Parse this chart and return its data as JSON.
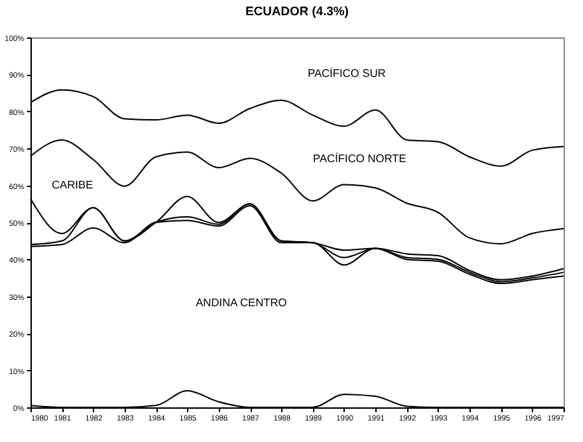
{
  "chart_data": {
    "type": "line",
    "title": "ECUADOR (4.3%)",
    "x": [
      1980,
      1981,
      1982,
      1983,
      1984,
      1985,
      1986,
      1987,
      1988,
      1989,
      1990,
      1991,
      1992,
      1993,
      1994,
      1995,
      1996,
      1997
    ],
    "series": [
      {
        "color": "#000000",
        "values": [
          82.4,
          85.8,
          84,
          78,
          77.7,
          79,
          76.8,
          80.8,
          83,
          79,
          76,
          80.4,
          72.3,
          71.8,
          67.7,
          65.2,
          69.5,
          70.5
        ]
      },
      {
        "color": "#000000",
        "values": [
          67.9,
          72.3,
          67,
          59.8,
          67.7,
          69,
          64.8,
          67.3,
          63.3,
          55.8,
          60.2,
          59.3,
          55.2,
          52.7,
          45.8,
          44.2,
          47,
          48.3
        ]
      },
      {
        "color": "#000000",
        "values": [
          56.4,
          47,
          54,
          45,
          50,
          57,
          50,
          55,
          45,
          44.5,
          42.5,
          43,
          41.5,
          41,
          37,
          34.5,
          35.5,
          37.5
        ]
      },
      {
        "color": "#000000",
        "values": [
          44,
          45,
          54,
          45,
          50,
          51.5,
          49.5,
          55,
          45,
          44.5,
          40.5,
          43,
          40.5,
          40,
          36.5,
          34,
          35,
          36.5
        ]
      },
      {
        "color": "#000000",
        "values": [
          43.5,
          44,
          48.5,
          44.5,
          50,
          50.5,
          49,
          54.5,
          44.5,
          44.5,
          38.5,
          43,
          40,
          39.5,
          36,
          33.5,
          34.5,
          35.5
        ]
      },
      {
        "color": "#000000",
        "values": [
          0.5,
          0,
          0,
          0,
          0.5,
          4.5,
          1.5,
          0,
          0,
          0,
          3.5,
          3,
          0.3,
          0,
          0,
          0,
          0,
          0
        ]
      }
    ],
    "xlim": [
      1980,
      1997
    ],
    "xticks": [
      1980,
      1981,
      1982,
      1983,
      1984,
      1985,
      1986,
      1987,
      1988,
      1989,
      1990,
      1991,
      1992,
      1993,
      1994,
      1995,
      1996,
      1997
    ],
    "ylim": [
      0,
      100
    ],
    "yticks": [
      {
        "value": 0,
        "label": "0%"
      },
      {
        "value": 10,
        "label": "10%"
      },
      {
        "value": 20,
        "label": "20%"
      },
      {
        "value": 30,
        "label": "30%"
      },
      {
        "value": 40,
        "label": "40%"
      },
      {
        "value": 50,
        "label": "50%"
      },
      {
        "value": 60,
        "label": "60%"
      },
      {
        "value": 70,
        "label": "70%"
      },
      {
        "value": 80,
        "label": "80%"
      },
      {
        "value": 90,
        "label": "90%"
      },
      {
        "value": 100,
        "label": "100%"
      }
    ],
    "annotations": [
      "PACÍFICO SUR",
      "PACÍFICO NORTE",
      "CARIBE",
      "ANDINA CENTRO"
    ]
  }
}
